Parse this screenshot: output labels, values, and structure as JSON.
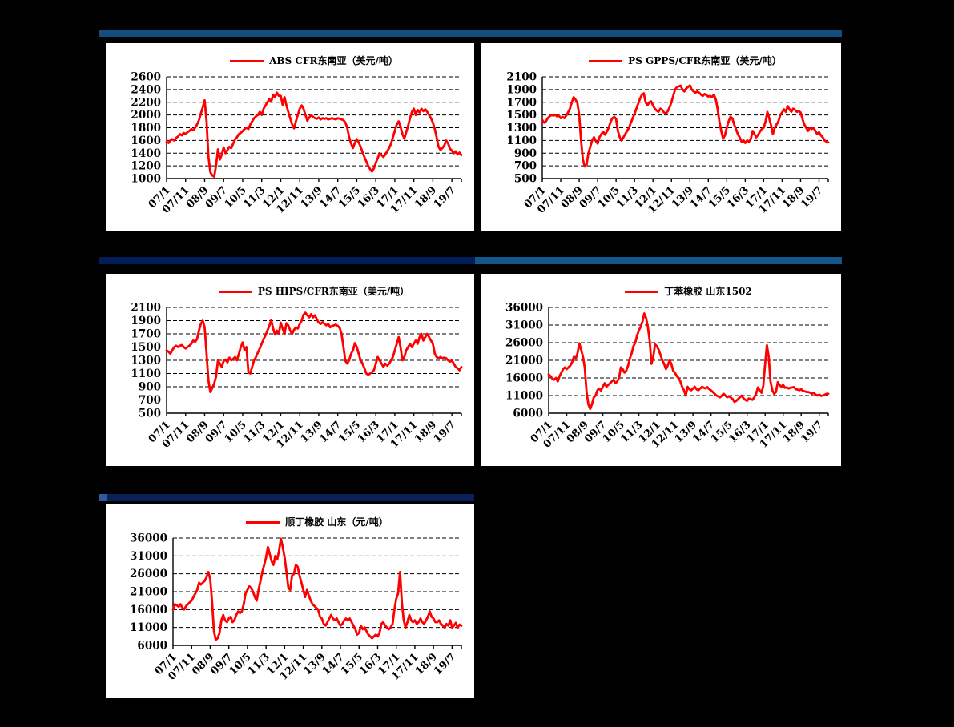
{
  "page": {
    "background": "#000000",
    "panel_background": "#FFFFFF",
    "decor_bar_colors": {
      "row1": "#134C7E",
      "row2_left": "#021E5A",
      "row2_right": "#14578D",
      "row3": "#0A2058",
      "row3_stub": "#30589E"
    }
  },
  "chart_data": [
    {
      "id": "abs-cfr-southeast-asia",
      "type": "line",
      "legend": "ABS CFR东南亚（美元/吨）",
      "line_color": "#FF0000",
      "ylim": [
        1000,
        2600
      ],
      "y_tick_step": 200,
      "y_tick_labels": [
        2600,
        2400,
        2200,
        2000,
        1800,
        1600,
        1400,
        1200,
        1000
      ],
      "x_tick_labels": [
        "07/1",
        "07/11",
        "08/9",
        "09/7",
        "10/5",
        "11/3",
        "12/1",
        "12/11",
        "13/9",
        "14/7",
        "15/5",
        "16/3",
        "17/1",
        "17/11",
        "18/9",
        "19/7"
      ],
      "x_tick_interval_months": 10,
      "x_range": "2007/1 - 2019/12",
      "grid": "horizontal-dashed",
      "legend_position": "top-center",
      "values_monthly": [
        1580,
        1560,
        1600,
        1620,
        1600,
        1640,
        1660,
        1700,
        1680,
        1720,
        1700,
        1730,
        1750,
        1780,
        1760,
        1800,
        1850,
        1920,
        2020,
        2120,
        2230,
        1900,
        1350,
        1100,
        1050,
        1030,
        1200,
        1460,
        1300,
        1380,
        1490,
        1400,
        1450,
        1500,
        1480,
        1550,
        1620,
        1650,
        1700,
        1720,
        1750,
        1780,
        1800,
        1780,
        1850,
        1900,
        1950,
        1980,
        2000,
        2050,
        2000,
        2100,
        2150,
        2200,
        2250,
        2210,
        2320,
        2280,
        2350,
        2300,
        2300,
        2160,
        2280,
        2150,
        2050,
        1950,
        1850,
        1790,
        1900,
        2000,
        2100,
        2150,
        2100,
        2000,
        1910,
        1960,
        2000,
        1970,
        1950,
        1940,
        1960,
        1930,
        1950,
        1940,
        1950,
        1930,
        1940,
        1950,
        1940,
        1930,
        1950,
        1940,
        1930,
        1920,
        1880,
        1800,
        1650,
        1550,
        1480,
        1560,
        1620,
        1570,
        1500,
        1420,
        1340,
        1270,
        1200,
        1150,
        1110,
        1160,
        1250,
        1320,
        1400,
        1370,
        1340,
        1380,
        1430,
        1480,
        1550,
        1650,
        1750,
        1850,
        1900,
        1820,
        1700,
        1630,
        1730,
        1830,
        1950,
        2050,
        2100,
        2000,
        2080,
        2040,
        2100,
        2060,
        2090,
        2050,
        2000,
        1950,
        1880,
        1780,
        1650,
        1500,
        1450,
        1480,
        1520,
        1600,
        1550,
        1470,
        1440,
        1400,
        1430,
        1380,
        1410,
        1370
      ]
    },
    {
      "id": "ps-gpps-cfr-southeast-asia",
      "type": "line",
      "legend": "PS GPPS/CFR东南亚（美元/吨）",
      "line_color": "#FF0000",
      "ylim": [
        500,
        2100
      ],
      "y_tick_step": 200,
      "y_tick_labels": [
        2100,
        1900,
        1700,
        1500,
        1300,
        1100,
        900,
        700,
        500
      ],
      "x_tick_labels": [
        "07/1",
        "07/11",
        "08/9",
        "09/7",
        "10/5",
        "11/3",
        "12/1",
        "12/11",
        "13/9",
        "14/7",
        "15/5",
        "16/3",
        "17/1",
        "17/11",
        "18/9",
        "19/7"
      ],
      "x_tick_interval_months": 10,
      "x_range": "2007/1 - 2019/12",
      "grid": "horizontal-dashed",
      "legend_position": "top-center",
      "values_monthly": [
        1420,
        1380,
        1400,
        1450,
        1480,
        1500,
        1490,
        1500,
        1480,
        1490,
        1450,
        1470,
        1450,
        1490,
        1540,
        1600,
        1700,
        1780,
        1740,
        1690,
        1500,
        1100,
        800,
        690,
        720,
        900,
        1000,
        1100,
        1150,
        1090,
        1050,
        1150,
        1200,
        1240,
        1190,
        1240,
        1300,
        1390,
        1450,
        1470,
        1440,
        1250,
        1150,
        1100,
        1150,
        1200,
        1250,
        1300,
        1380,
        1450,
        1520,
        1600,
        1680,
        1760,
        1820,
        1840,
        1700,
        1650,
        1700,
        1715,
        1650,
        1600,
        1570,
        1550,
        1600,
        1580,
        1540,
        1520,
        1560,
        1620,
        1700,
        1800,
        1900,
        1940,
        1950,
        1960,
        1900,
        1870,
        1920,
        1940,
        1965,
        1900,
        1870,
        1850,
        1870,
        1850,
        1820,
        1800,
        1830,
        1810,
        1790,
        1800,
        1780,
        1820,
        1750,
        1600,
        1400,
        1250,
        1130,
        1180,
        1300,
        1400,
        1470,
        1450,
        1350,
        1280,
        1200,
        1150,
        1080,
        1100,
        1060,
        1100,
        1080,
        1120,
        1250,
        1200,
        1150,
        1190,
        1240,
        1280,
        1300,
        1400,
        1550,
        1450,
        1340,
        1200,
        1300,
        1350,
        1400,
        1500,
        1540,
        1590,
        1550,
        1640,
        1590,
        1550,
        1600,
        1580,
        1550,
        1560,
        1540,
        1440,
        1350,
        1300,
        1250,
        1300,
        1280,
        1300,
        1250,
        1200,
        1230,
        1180,
        1150,
        1100,
        1080,
        1070
      ]
    },
    {
      "id": "ps-hips-cfr-southeast-asia",
      "type": "line",
      "legend": "PS HIPS/CFR东南亚（美元/吨）",
      "line_color": "#FF0000",
      "ylim": [
        500,
        2100
      ],
      "y_tick_step": 200,
      "y_tick_labels": [
        2100,
        1900,
        1700,
        1500,
        1300,
        1100,
        900,
        700,
        500
      ],
      "x_tick_labels": [
        "07/1",
        "07/11",
        "08/9",
        "09/7",
        "10/5",
        "11/3",
        "12/1",
        "12/11",
        "13/9",
        "14/7",
        "15/5",
        "16/3",
        "17/1",
        "17/11",
        "18/9",
        "19/7"
      ],
      "x_tick_interval_months": 10,
      "x_range": "2007/1 - 2019/12",
      "grid": "horizontal-dashed",
      "legend_position": "top-center",
      "values_monthly": [
        1450,
        1430,
        1400,
        1450,
        1500,
        1520,
        1500,
        1520,
        1530,
        1500,
        1480,
        1500,
        1520,
        1550,
        1600,
        1580,
        1620,
        1750,
        1850,
        1900,
        1800,
        1400,
        1000,
        820,
        880,
        950,
        1050,
        1300,
        1250,
        1200,
        1290,
        1310,
        1270,
        1340,
        1300,
        1320,
        1350,
        1300,
        1400,
        1500,
        1570,
        1450,
        1500,
        1120,
        1100,
        1200,
        1300,
        1350,
        1420,
        1480,
        1550,
        1620,
        1680,
        1750,
        1820,
        1910,
        1780,
        1690,
        1750,
        1700,
        1870,
        1780,
        1700,
        1860,
        1830,
        1750,
        1700,
        1760,
        1800,
        1780,
        1850,
        1900,
        1990,
        2020,
        1980,
        1950,
        2000,
        1950,
        1980,
        1920,
        1870,
        1850,
        1880,
        1850,
        1830,
        1850,
        1800,
        1820,
        1830,
        1840,
        1820,
        1790,
        1700,
        1500,
        1290,
        1250,
        1300,
        1400,
        1450,
        1560,
        1500,
        1400,
        1300,
        1250,
        1180,
        1100,
        1080,
        1100,
        1120,
        1150,
        1250,
        1350,
        1300,
        1250,
        1200,
        1250,
        1220,
        1250,
        1300,
        1350,
        1450,
        1550,
        1650,
        1500,
        1300,
        1350,
        1450,
        1500,
        1550,
        1500,
        1550,
        1600,
        1550,
        1650,
        1700,
        1600,
        1650,
        1700,
        1650,
        1600,
        1550,
        1400,
        1350,
        1330,
        1350,
        1330,
        1340,
        1330,
        1300,
        1280,
        1300,
        1250,
        1200,
        1180,
        1150,
        1200
      ]
    },
    {
      "id": "sbr-shandong-1502",
      "type": "line",
      "legend": "丁苯橡胶 山东1502",
      "line_color": "#FF0000",
      "ylim": [
        6000,
        36000
      ],
      "y_tick_step": 5000,
      "y_tick_labels": [
        36000,
        31000,
        26000,
        21000,
        16000,
        11000,
        6000
      ],
      "x_tick_labels": [
        "07/1",
        "07/11",
        "08/9",
        "09/7",
        "10/5",
        "11/3",
        "12/1",
        "12/11",
        "13/9",
        "14/7",
        "15/5",
        "16/3",
        "17/1",
        "17/11",
        "18/9",
        "19/7"
      ],
      "x_tick_interval_months": 10,
      "x_range": "2007/1 - 2019/12",
      "grid": "horizontal-dashed",
      "legend_position": "top-center",
      "values_monthly": [
        17000,
        16500,
        15800,
        15500,
        16000,
        15000,
        16500,
        17500,
        18500,
        19000,
        18500,
        19000,
        19500,
        20500,
        22000,
        21500,
        23000,
        25800,
        24000,
        22000,
        19000,
        12000,
        8500,
        7200,
        8500,
        10500,
        11000,
        12500,
        13000,
        12400,
        13500,
        14500,
        13500,
        14000,
        14500,
        15000,
        15500,
        14500,
        15000,
        16000,
        19000,
        18500,
        17500,
        18000,
        19500,
        21500,
        23000,
        25000,
        26000,
        28000,
        29500,
        30500,
        32000,
        34300,
        33000,
        30500,
        26500,
        20000,
        22000,
        25500,
        25000,
        24000,
        22500,
        21000,
        20000,
        18500,
        19500,
        21000,
        20000,
        18000,
        17500,
        16500,
        16000,
        15000,
        13500,
        12500,
        11000,
        13500,
        12800,
        12500,
        13000,
        13500,
        12800,
        12500,
        13000,
        13500,
        13200,
        13000,
        13400,
        12800,
        12500,
        12000,
        11500,
        11000,
        10800,
        10500,
        11000,
        11500,
        11000,
        10500,
        10800,
        10400,
        10000,
        9200,
        9500,
        10000,
        10500,
        11000,
        10200,
        9800,
        9500,
        10200,
        10000,
        9800,
        10500,
        11500,
        13300,
        12500,
        11800,
        13800,
        20000,
        25300,
        22000,
        15000,
        12500,
        11500,
        12000,
        14800,
        14000,
        13500,
        14000,
        13200,
        13300,
        13000,
        13200,
        13300,
        13400,
        12800,
        12700,
        12500,
        12800,
        12300,
        12200,
        12000,
        12000,
        11800,
        11500,
        11800,
        11300,
        11000,
        11300,
        10900,
        11000,
        11200,
        11500,
        11500
      ]
    },
    {
      "id": "br-shandong",
      "type": "line",
      "legend": "顺丁橡胶 山东（元/吨）",
      "line_color": "#FF0000",
      "ylim": [
        6000,
        36000
      ],
      "y_tick_step": 5000,
      "y_tick_labels": [
        36000,
        31000,
        26000,
        21000,
        16000,
        11000,
        6000
      ],
      "x_tick_labels": [
        "07/1",
        "07/11",
        "08/9",
        "09/7",
        "10/5",
        "11/3",
        "12/1",
        "12/11",
        "13/9",
        "14/7",
        "15/5",
        "16/3",
        "17/1",
        "17/11",
        "18/9",
        "19/7"
      ],
      "x_tick_interval_months": 10,
      "x_range": "2007/1 - 2019/12",
      "grid": "horizontal-dashed",
      "legend_position": "top-center",
      "values_monthly": [
        16000,
        17500,
        17200,
        16800,
        17500,
        16500,
        16000,
        17000,
        17500,
        18000,
        18500,
        19500,
        20500,
        21500,
        23500,
        23000,
        23500,
        24000,
        25000,
        26500,
        24500,
        18000,
        10000,
        7500,
        8000,
        9500,
        13000,
        14500,
        13000,
        12500,
        13500,
        14000,
        12500,
        13000,
        14500,
        15500,
        15000,
        15500,
        17500,
        20500,
        21500,
        22500,
        22000,
        21000,
        19500,
        18500,
        21500,
        24000,
        26500,
        28500,
        30500,
        33500,
        31500,
        29500,
        28500,
        31000,
        30000,
        32500,
        35800,
        33500,
        30500,
        26500,
        22000,
        21500,
        25500,
        26000,
        28500,
        28000,
        25500,
        23500,
        21500,
        19500,
        21500,
        20000,
        18500,
        17500,
        17000,
        16500,
        16000,
        14000,
        13500,
        12000,
        11500,
        12500,
        13500,
        14500,
        13500,
        13000,
        13500,
        12500,
        11500,
        12000,
        13000,
        13500,
        13000,
        13500,
        12500,
        11500,
        10500,
        9000,
        9500,
        11500,
        10500,
        11000,
        10000,
        9000,
        8500,
        8000,
        8500,
        9000,
        8500,
        9500,
        12000,
        12500,
        11500,
        11000,
        10500,
        11000,
        12000,
        16000,
        19000,
        20500,
        26500,
        18000,
        13000,
        11000,
        12500,
        14500,
        13000,
        12500,
        13000,
        12000,
        12500,
        13500,
        12500,
        12000,
        13000,
        14000,
        15500,
        14000,
        13500,
        12500,
        12500,
        13000,
        12000,
        11500,
        11000,
        12000,
        11500,
        13000,
        11000,
        11500,
        12300,
        11000,
        11800,
        11500
      ]
    }
  ]
}
